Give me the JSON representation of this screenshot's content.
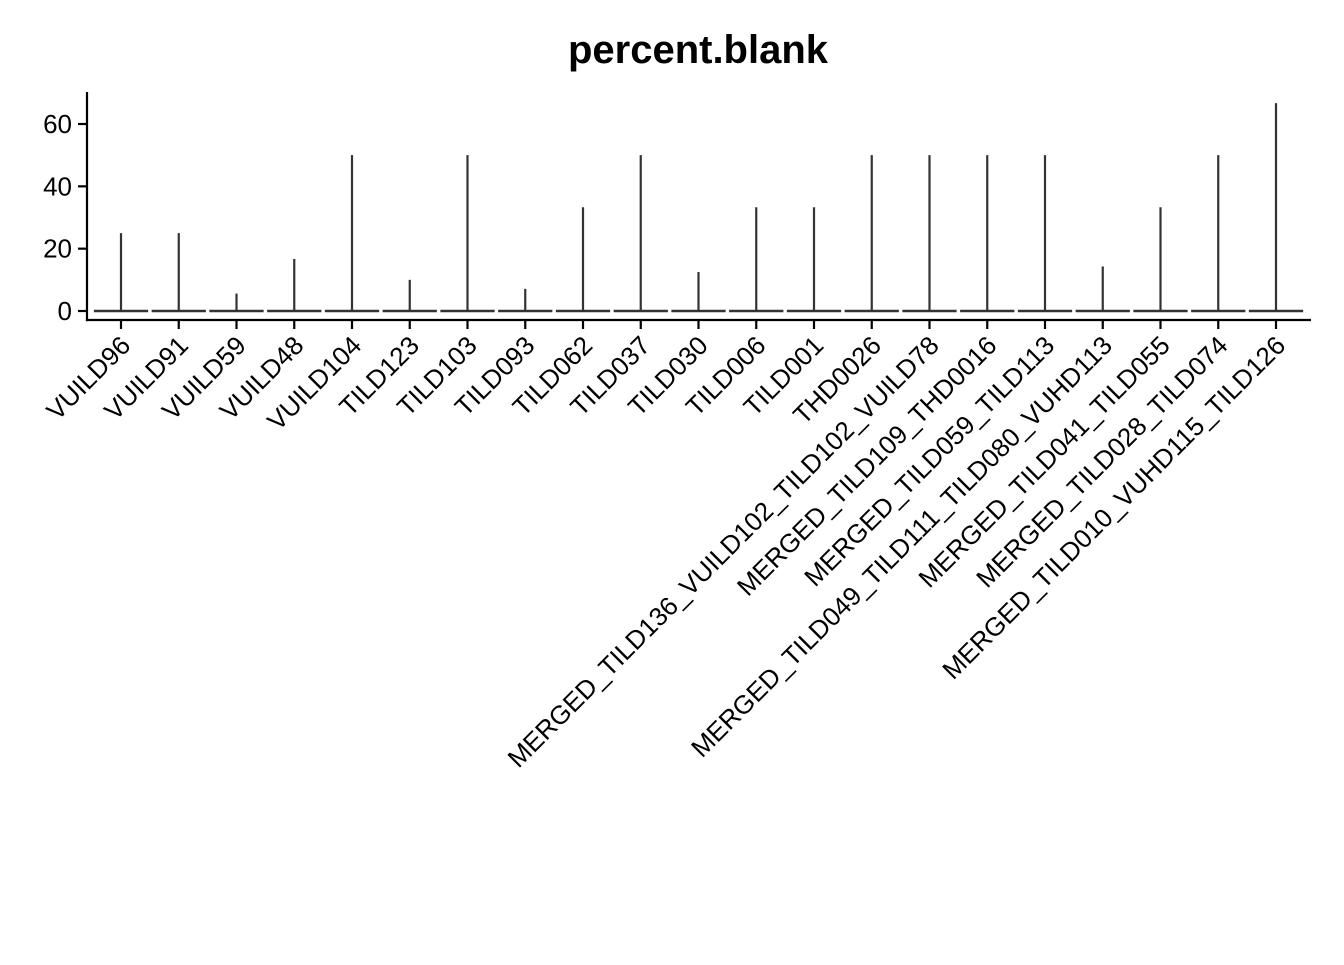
{
  "chart_data": {
    "type": "violin",
    "title": "percent.blank",
    "xlabel": "",
    "ylabel": "",
    "ylim": [
      -2.5,
      70
    ],
    "yticks": [
      0,
      20,
      40,
      60
    ],
    "grid": false,
    "legend": "none",
    "colors": {
      "violin": "#333333",
      "axis": "#000000"
    },
    "categories": [
      "VUILD96",
      "VUILD91",
      "VUILD59",
      "VUILD48",
      "VUILD104",
      "TILD123",
      "TILD103",
      "TILD093",
      "TILD062",
      "TILD037",
      "TILD030",
      "TILD006",
      "TILD001",
      "THD0026",
      "MERGED_TILD136_VUILD102_TILD102_VUILD78",
      "MERGED_TILD109_THD0016",
      "MERGED_TILD059_TILD113",
      "MERGED_TILD049_TILD111_TILD080_VUHD113",
      "MERGED_TILD041_TILD055",
      "MERGED_TILD028_TILD074",
      "MERGED_TILD010_VUHD115_TILD126"
    ],
    "min_values": [
      0,
      0,
      0,
      0,
      0,
      0,
      0,
      0,
      0,
      0,
      0,
      0,
      0,
      0,
      0,
      0,
      0,
      0,
      0,
      0,
      0
    ],
    "max_values": [
      25,
      25,
      5.6,
      16.7,
      50,
      10,
      50,
      7.1,
      33.3,
      50,
      12.5,
      33.3,
      33.3,
      50,
      50,
      50,
      50,
      14.3,
      33.3,
      50,
      66.7
    ]
  }
}
